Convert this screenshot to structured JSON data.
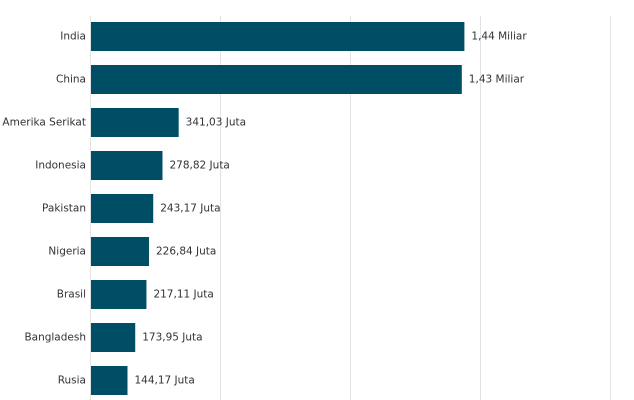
{
  "chart_data": {
    "type": "bar",
    "orientation": "horizontal",
    "categories": [
      "India",
      "China",
      "Amerika Serikat",
      "Indonesia",
      "Pakistan",
      "Nigeria",
      "Brasil",
      "Bangladesh",
      "Rusia"
    ],
    "values": [
      1440000000,
      1430000000,
      341030000,
      278820000,
      243170000,
      226840000,
      217110000,
      173950000,
      144170000
    ],
    "value_labels": [
      "1,44 Miliar",
      "1,43 Miliar",
      "341,03 Juta",
      "278,82 Juta",
      "243,17 Juta",
      "226,84 Juta",
      "217,11 Juta",
      "173,95 Juta",
      "144,17 Juta"
    ],
    "xlim": [
      0,
      2000000000
    ],
    "grid": true,
    "legend": "none",
    "bar_color": "#004e66"
  }
}
